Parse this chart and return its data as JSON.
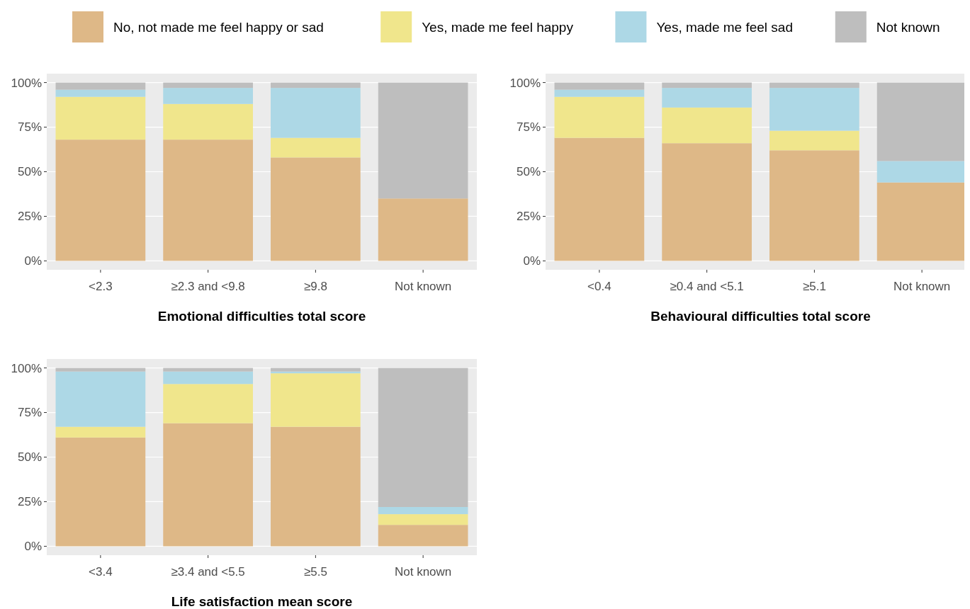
{
  "chart_data": [
    {
      "type": "bar",
      "stacked": true,
      "xlabel": "Emotional difficulties total score",
      "categories": [
        "<2.3",
        "≥2.3 and <9.8",
        "≥9.8",
        "Not known"
      ],
      "ylim": [
        -5,
        105
      ],
      "yticks": [
        {
          "value": 0,
          "label": "0%"
        },
        {
          "value": 25,
          "label": "25%"
        },
        {
          "value": 50,
          "label": "50%"
        },
        {
          "value": 75,
          "label": "75%"
        },
        {
          "value": 100,
          "label": "100%"
        }
      ],
      "grid": "y",
      "legend": "top",
      "series": [
        {
          "name": "No, not made me feel happy or sad",
          "color": "#deb887",
          "values": [
            68,
            68,
            58,
            35
          ]
        },
        {
          "name": "Yes, made me feel happy",
          "color": "#f0e68c",
          "values": [
            24,
            20,
            11,
            0
          ]
        },
        {
          "name": "Yes, made me feel sad",
          "color": "#add8e6",
          "values": [
            4,
            9,
            28,
            0
          ]
        },
        {
          "name": "Not known",
          "color": "#bebebe",
          "values": [
            4,
            3,
            3,
            65
          ]
        }
      ]
    },
    {
      "type": "bar",
      "stacked": true,
      "xlabel": "Behavioural difficulties total score",
      "categories": [
        "<0.4",
        "≥0.4 and <5.1",
        "≥5.1",
        "Not known"
      ],
      "ylim": [
        -5,
        105
      ],
      "yticks": [
        {
          "value": 0,
          "label": "0%"
        },
        {
          "value": 25,
          "label": "25%"
        },
        {
          "value": 50,
          "label": "50%"
        },
        {
          "value": 75,
          "label": "75%"
        },
        {
          "value": 100,
          "label": "100%"
        }
      ],
      "grid": "y",
      "series": [
        {
          "color": "#deb887",
          "values": [
            69,
            66,
            62,
            44
          ]
        },
        {
          "color": "#f0e68c",
          "values": [
            23,
            20,
            11,
            0
          ]
        },
        {
          "color": "#add8e6",
          "values": [
            4,
            11,
            24,
            12
          ]
        },
        {
          "color": "#bebebe",
          "values": [
            4,
            3,
            3,
            44
          ]
        }
      ]
    },
    {
      "type": "bar",
      "stacked": true,
      "xlabel": "Life satisfaction mean score",
      "categories": [
        "<3.4",
        "≥3.4 and <5.5",
        "≥5.5",
        "Not known"
      ],
      "ylim": [
        -5,
        105
      ],
      "yticks": [
        {
          "value": 0,
          "label": "0%"
        },
        {
          "value": 25,
          "label": "25%"
        },
        {
          "value": 50,
          "label": "50%"
        },
        {
          "value": 75,
          "label": "75%"
        },
        {
          "value": 100,
          "label": "100%"
        }
      ],
      "grid": "y",
      "series": [
        {
          "color": "#deb887",
          "values": [
            61,
            69,
            67,
            12
          ]
        },
        {
          "color": "#f0e68c",
          "values": [
            6,
            22,
            30,
            6
          ]
        },
        {
          "color": "#add8e6",
          "values": [
            31,
            7,
            1,
            4
          ]
        },
        {
          "color": "#bebebe",
          "values": [
            2,
            2,
            2,
            78
          ]
        }
      ]
    }
  ]
}
